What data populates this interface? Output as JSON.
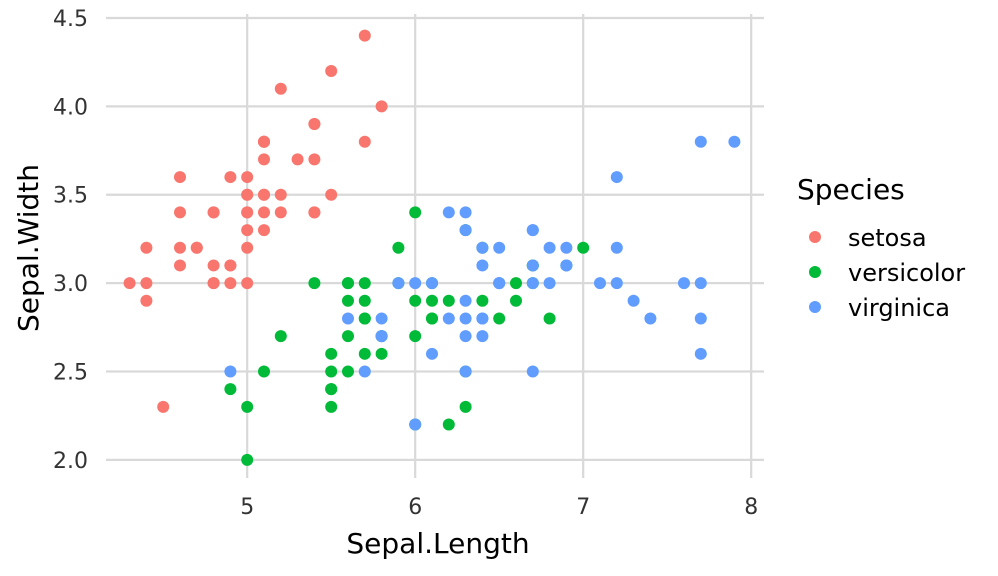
{
  "chart_data": {
    "type": "scatter",
    "xlabel": "Sepal.Length",
    "ylabel": "Sepal.Width",
    "xlim": [
      4.1,
      8.1
    ],
    "ylim": [
      1.92,
      4.5
    ],
    "x_ticks": [
      5,
      6,
      7,
      8
    ],
    "x_tick_labels": [
      "5",
      "6",
      "7",
      "8"
    ],
    "y_ticks": [
      2.0,
      2.5,
      3.0,
      3.5,
      4.0,
      4.5
    ],
    "y_tick_labels": [
      "2.0",
      "2.5",
      "3.0",
      "3.5",
      "4.0",
      "4.5"
    ],
    "grid": true,
    "legend": {
      "title": "Species",
      "position": "right",
      "entries": [
        "setosa",
        "versicolor",
        "virginica"
      ]
    },
    "series": [
      {
        "name": "setosa",
        "color": "#F8766D",
        "points": [
          [
            5.1,
            3.5
          ],
          [
            4.9,
            3.0
          ],
          [
            4.7,
            3.2
          ],
          [
            4.6,
            3.1
          ],
          [
            5.0,
            3.6
          ],
          [
            5.4,
            3.9
          ],
          [
            4.6,
            3.4
          ],
          [
            5.0,
            3.4
          ],
          [
            4.4,
            2.9
          ],
          [
            4.9,
            3.1
          ],
          [
            5.4,
            3.7
          ],
          [
            4.8,
            3.4
          ],
          [
            4.8,
            3.0
          ],
          [
            4.3,
            3.0
          ],
          [
            5.8,
            4.0
          ],
          [
            5.7,
            4.4
          ],
          [
            5.4,
            3.9
          ],
          [
            5.1,
            3.5
          ],
          [
            5.7,
            3.8
          ],
          [
            5.1,
            3.8
          ],
          [
            5.4,
            3.4
          ],
          [
            5.1,
            3.7
          ],
          [
            4.6,
            3.6
          ],
          [
            5.1,
            3.3
          ],
          [
            4.8,
            3.4
          ],
          [
            5.0,
            3.0
          ],
          [
            5.0,
            3.4
          ],
          [
            5.2,
            3.5
          ],
          [
            5.2,
            3.4
          ],
          [
            4.7,
            3.2
          ],
          [
            4.8,
            3.1
          ],
          [
            5.4,
            3.4
          ],
          [
            5.2,
            4.1
          ],
          [
            5.5,
            4.2
          ],
          [
            4.9,
            3.1
          ],
          [
            5.0,
            3.2
          ],
          [
            5.5,
            3.5
          ],
          [
            4.9,
            3.6
          ],
          [
            4.4,
            3.0
          ],
          [
            5.1,
            3.4
          ],
          [
            5.0,
            3.5
          ],
          [
            4.5,
            2.3
          ],
          [
            4.4,
            3.2
          ],
          [
            5.0,
            3.5
          ],
          [
            5.1,
            3.8
          ],
          [
            4.8,
            3.0
          ],
          [
            5.1,
            3.8
          ],
          [
            4.6,
            3.2
          ],
          [
            5.3,
            3.7
          ],
          [
            5.0,
            3.3
          ]
        ]
      },
      {
        "name": "versicolor",
        "color": "#00BA38",
        "points": [
          [
            7.0,
            3.2
          ],
          [
            6.4,
            3.2
          ],
          [
            6.9,
            3.1
          ],
          [
            5.5,
            2.3
          ],
          [
            6.5,
            2.8
          ],
          [
            5.7,
            2.8
          ],
          [
            6.3,
            3.3
          ],
          [
            4.9,
            2.4
          ],
          [
            6.6,
            2.9
          ],
          [
            5.2,
            2.7
          ],
          [
            5.0,
            2.0
          ],
          [
            5.9,
            3.0
          ],
          [
            6.0,
            2.2
          ],
          [
            6.1,
            2.9
          ],
          [
            5.6,
            2.9
          ],
          [
            6.7,
            3.1
          ],
          [
            5.6,
            3.0
          ],
          [
            5.8,
            2.7
          ],
          [
            6.2,
            2.2
          ],
          [
            5.6,
            2.5
          ],
          [
            5.9,
            3.2
          ],
          [
            6.1,
            2.8
          ],
          [
            6.3,
            2.5
          ],
          [
            6.1,
            2.8
          ],
          [
            6.4,
            2.9
          ],
          [
            6.6,
            3.0
          ],
          [
            6.8,
            2.8
          ],
          [
            6.7,
            3.0
          ],
          [
            6.0,
            2.9
          ],
          [
            5.7,
            2.6
          ],
          [
            5.5,
            2.4
          ],
          [
            5.5,
            2.4
          ],
          [
            5.8,
            2.7
          ],
          [
            6.0,
            2.7
          ],
          [
            5.4,
            3.0
          ],
          [
            6.0,
            3.4
          ],
          [
            6.7,
            3.1
          ],
          [
            6.3,
            2.3
          ],
          [
            5.6,
            3.0
          ],
          [
            5.5,
            2.5
          ],
          [
            5.5,
            2.6
          ],
          [
            6.1,
            3.0
          ],
          [
            5.8,
            2.6
          ],
          [
            5.0,
            2.3
          ],
          [
            5.6,
            2.7
          ],
          [
            5.7,
            3.0
          ],
          [
            5.7,
            2.9
          ],
          [
            6.2,
            2.9
          ],
          [
            5.1,
            2.5
          ],
          [
            5.7,
            2.8
          ]
        ]
      },
      {
        "name": "virginica",
        "color": "#619CFF",
        "points": [
          [
            6.3,
            3.3
          ],
          [
            5.8,
            2.7
          ],
          [
            7.1,
            3.0
          ],
          [
            6.3,
            2.9
          ],
          [
            6.5,
            3.0
          ],
          [
            7.6,
            3.0
          ],
          [
            4.9,
            2.5
          ],
          [
            7.3,
            2.9
          ],
          [
            6.7,
            2.5
          ],
          [
            7.2,
            3.6
          ],
          [
            6.5,
            3.2
          ],
          [
            6.4,
            2.7
          ],
          [
            6.8,
            3.0
          ],
          [
            5.7,
            2.5
          ],
          [
            5.8,
            2.8
          ],
          [
            6.4,
            3.2
          ],
          [
            6.5,
            3.0
          ],
          [
            7.7,
            3.8
          ],
          [
            7.7,
            2.6
          ],
          [
            6.0,
            2.2
          ],
          [
            6.9,
            3.2
          ],
          [
            5.6,
            2.8
          ],
          [
            7.7,
            2.8
          ],
          [
            6.3,
            2.7
          ],
          [
            6.7,
            3.3
          ],
          [
            7.2,
            3.2
          ],
          [
            6.2,
            2.8
          ],
          [
            6.1,
            3.0
          ],
          [
            6.4,
            2.8
          ],
          [
            7.2,
            3.0
          ],
          [
            7.4,
            2.8
          ],
          [
            7.9,
            3.8
          ],
          [
            6.4,
            2.8
          ],
          [
            6.3,
            2.8
          ],
          [
            6.1,
            2.6
          ],
          [
            7.7,
            3.0
          ],
          [
            6.3,
            3.4
          ],
          [
            6.4,
            3.1
          ],
          [
            6.0,
            3.0
          ],
          [
            6.9,
            3.1
          ],
          [
            6.7,
            3.1
          ],
          [
            6.9,
            3.1
          ],
          [
            5.8,
            2.7
          ],
          [
            6.8,
            3.2
          ],
          [
            6.7,
            3.3
          ],
          [
            6.7,
            3.0
          ],
          [
            6.3,
            2.5
          ],
          [
            6.5,
            3.0
          ],
          [
            6.2,
            3.4
          ],
          [
            5.9,
            3.0
          ]
        ]
      }
    ]
  }
}
